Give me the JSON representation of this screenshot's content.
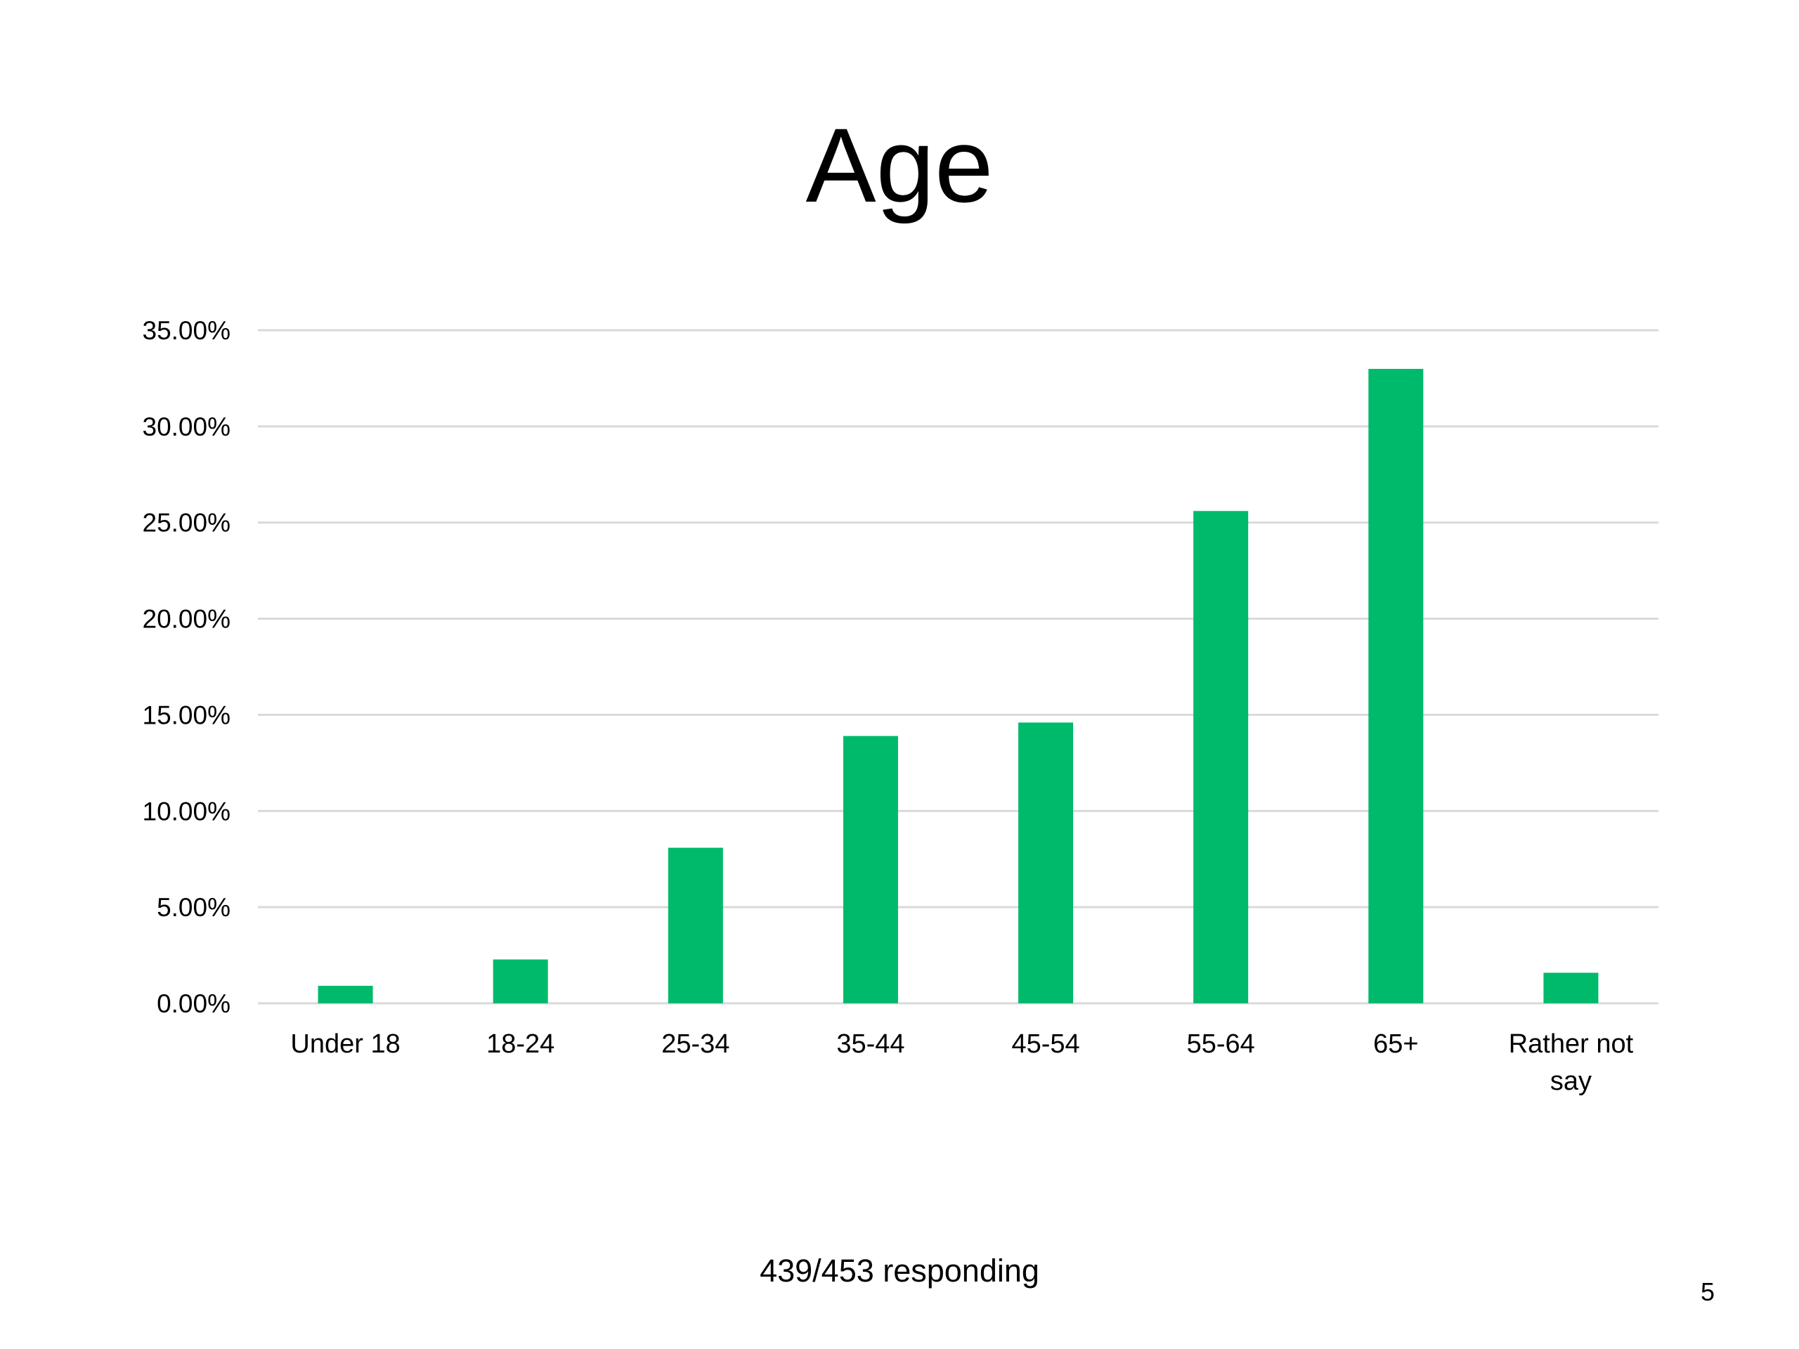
{
  "slide": {
    "title": "Age",
    "footer": "439/453 responding",
    "page_number": "5"
  },
  "chart_data": {
    "type": "bar",
    "title": "",
    "xlabel": "",
    "ylabel": "",
    "categories": [
      "Under 18",
      "18-24",
      "25-34",
      "35-44",
      "45-54",
      "55-64",
      "65+",
      "Rather not say"
    ],
    "category_lines": [
      [
        "Under 18"
      ],
      [
        "18-24"
      ],
      [
        "25-34"
      ],
      [
        "35-44"
      ],
      [
        "45-54"
      ],
      [
        "55-64"
      ],
      [
        "65+"
      ],
      [
        "Rather not",
        "say"
      ]
    ],
    "values": [
      0.91,
      2.28,
      8.09,
      13.9,
      14.6,
      25.6,
      32.99,
      1.59
    ],
    "ylim": [
      0,
      35
    ],
    "yticks": [
      0,
      5,
      10,
      15,
      20,
      25,
      30,
      35
    ],
    "ytick_labels": [
      "0.00%",
      "5.00%",
      "10.00%",
      "15.00%",
      "20.00%",
      "25.00%",
      "30.00%",
      "35.00%"
    ],
    "grid": true,
    "bar_color": "#00BA6B",
    "grid_color": "#D9D9D9",
    "legend": "none"
  }
}
